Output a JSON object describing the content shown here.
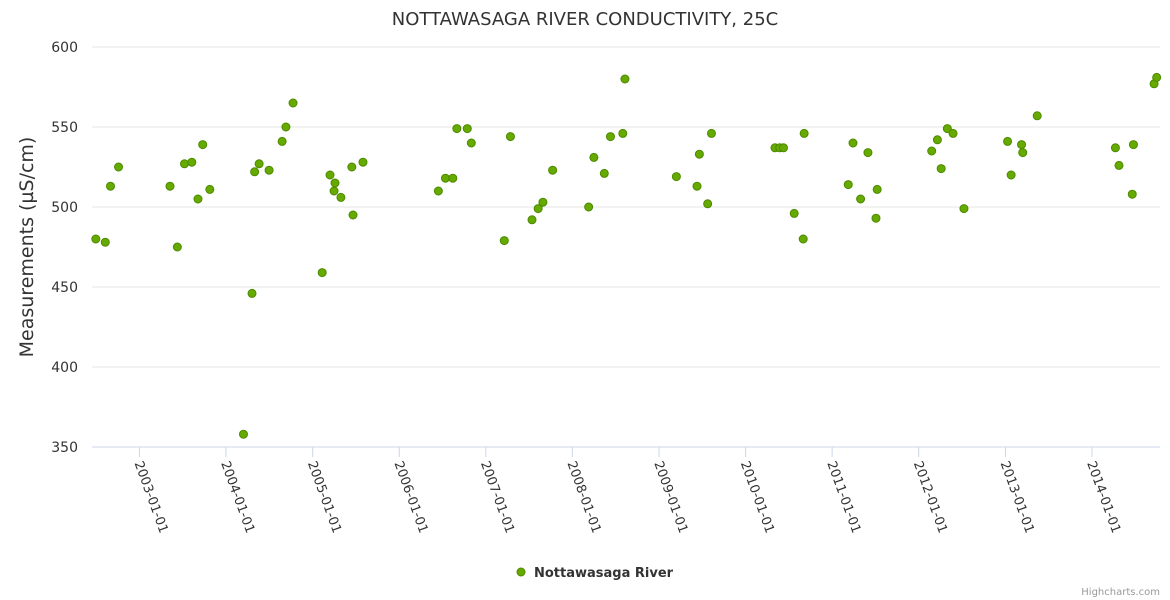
{
  "chart_data": {
    "type": "scatter",
    "title": "NOTTAWASAGA RIVER CONDUCTIVITY, 25C",
    "xlabel": "",
    "ylabel": "Measurements (µS/cm)",
    "ylim": [
      350,
      600
    ],
    "yticks": [
      350,
      400,
      450,
      500,
      550,
      600
    ],
    "xlim": [
      "2002-06-15",
      "2014-10-15"
    ],
    "xticks": [
      "2003-01-01",
      "2004-01-01",
      "2005-01-01",
      "2006-01-01",
      "2007-01-01",
      "2008-01-01",
      "2009-01-01",
      "2010-01-01",
      "2011-01-01",
      "2012-01-01",
      "2013-01-01",
      "2014-01-01"
    ],
    "grid": true,
    "legend": "bottom-center",
    "series": [
      {
        "name": "Nottawasaga River",
        "color": "#66aa00",
        "points": [
          [
            "2002-07-01",
            480
          ],
          [
            "2002-08-10",
            478
          ],
          [
            "2002-09-01",
            513
          ],
          [
            "2002-10-05",
            525
          ],
          [
            "2003-05-10",
            513
          ],
          [
            "2003-06-10",
            475
          ],
          [
            "2003-07-10",
            527
          ],
          [
            "2003-08-10",
            528
          ],
          [
            "2003-09-05",
            505
          ],
          [
            "2003-09-25",
            539
          ],
          [
            "2003-10-25",
            511
          ],
          [
            "2004-03-15",
            358
          ],
          [
            "2004-04-20",
            446
          ],
          [
            "2004-05-01",
            522
          ],
          [
            "2004-05-20",
            527
          ],
          [
            "2004-07-01",
            523
          ],
          [
            "2004-08-25",
            541
          ],
          [
            "2004-09-10",
            550
          ],
          [
            "2004-10-10",
            565
          ],
          [
            "2005-02-10",
            459
          ],
          [
            "2005-03-15",
            520
          ],
          [
            "2005-04-01",
            510
          ],
          [
            "2005-04-05",
            515
          ],
          [
            "2005-04-30",
            506
          ],
          [
            "2005-06-15",
            525
          ],
          [
            "2005-06-20",
            495
          ],
          [
            "2005-08-01",
            528
          ],
          [
            "2006-06-15",
            510
          ],
          [
            "2006-07-15",
            518
          ],
          [
            "2006-08-15",
            518
          ],
          [
            "2006-09-01",
            549
          ],
          [
            "2006-10-15",
            549
          ],
          [
            "2006-11-01",
            540
          ],
          [
            "2007-03-20",
            479
          ],
          [
            "2007-04-15",
            544
          ],
          [
            "2007-07-15",
            492
          ],
          [
            "2007-08-10",
            499
          ],
          [
            "2007-08-30",
            503
          ],
          [
            "2007-10-10",
            523
          ],
          [
            "2008-03-10",
            500
          ],
          [
            "2008-04-01",
            531
          ],
          [
            "2008-05-15",
            521
          ],
          [
            "2008-06-10",
            544
          ],
          [
            "2008-08-01",
            546
          ],
          [
            "2008-08-10",
            580
          ],
          [
            "2009-03-15",
            519
          ],
          [
            "2009-06-10",
            513
          ],
          [
            "2009-06-20",
            533
          ],
          [
            "2009-07-25",
            502
          ],
          [
            "2009-08-10",
            546
          ],
          [
            "2010-05-05",
            537
          ],
          [
            "2010-05-25",
            537
          ],
          [
            "2010-06-10",
            537
          ],
          [
            "2010-07-25",
            496
          ],
          [
            "2010-09-01",
            480
          ],
          [
            "2010-09-05",
            546
          ],
          [
            "2011-03-10",
            514
          ],
          [
            "2011-03-30",
            540
          ],
          [
            "2011-05-01",
            505
          ],
          [
            "2011-06-01",
            534
          ],
          [
            "2011-07-05",
            493
          ],
          [
            "2011-07-10",
            511
          ],
          [
            "2012-02-25",
            535
          ],
          [
            "2012-03-20",
            542
          ],
          [
            "2012-04-05",
            524
          ],
          [
            "2012-05-01",
            549
          ],
          [
            "2012-05-25",
            546
          ],
          [
            "2012-07-10",
            499
          ],
          [
            "2013-01-10",
            541
          ],
          [
            "2013-01-25",
            520
          ],
          [
            "2013-03-10",
            539
          ],
          [
            "2013-03-15",
            534
          ],
          [
            "2013-05-15",
            557
          ],
          [
            "2014-04-10",
            537
          ],
          [
            "2014-04-25",
            526
          ],
          [
            "2014-06-25",
            539
          ],
          [
            "2014-06-20",
            508
          ],
          [
            "2014-09-20",
            577
          ],
          [
            "2014-10-01",
            581
          ]
        ]
      }
    ],
    "credits": "Highcharts.com"
  }
}
